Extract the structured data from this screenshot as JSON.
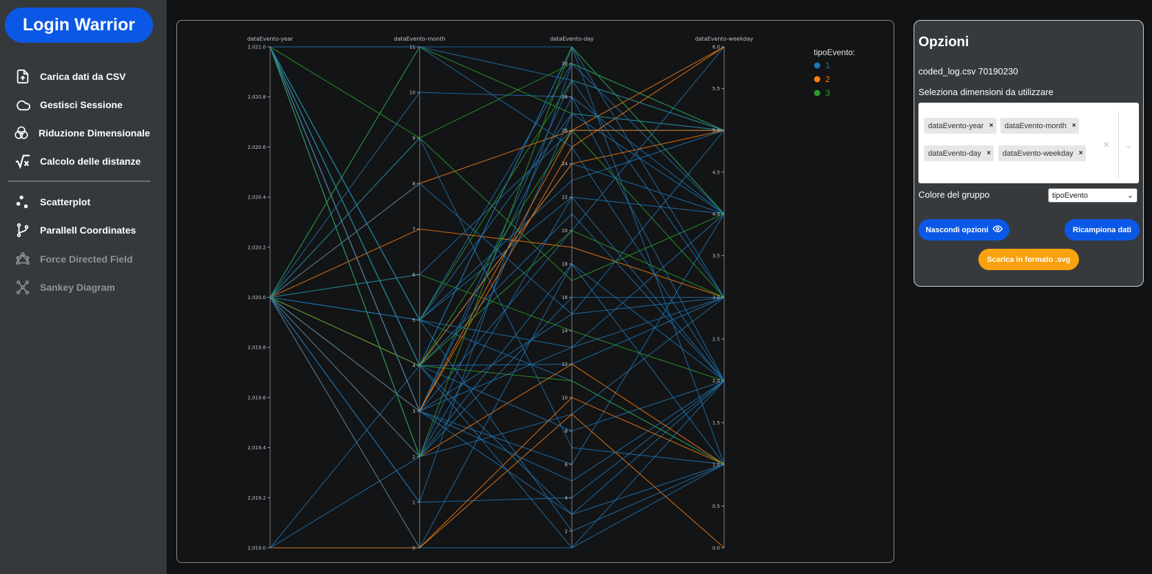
{
  "app": {
    "title": "Login Warrior"
  },
  "sidebar": {
    "items": [
      {
        "label": "Carica dati da CSV",
        "icon": "file-upload-icon",
        "enabled": true
      },
      {
        "label": "Gestisci Sessione",
        "icon": "cloud-icon",
        "enabled": true
      },
      {
        "label": "Riduzione Dimensionale",
        "icon": "venn-icon",
        "enabled": true
      },
      {
        "label": "Calcolo delle distanze",
        "icon": "square-root-icon",
        "enabled": true
      },
      {
        "label": "Scatterplot",
        "icon": "scatter-icon",
        "enabled": true
      },
      {
        "label": "Parallell Coordinates",
        "icon": "branch-icon",
        "enabled": true
      },
      {
        "label": "Force Directed Field",
        "icon": "graph-icon",
        "enabled": false
      },
      {
        "label": "Sankey Diagram",
        "icon": "sankey-icon",
        "enabled": false
      }
    ]
  },
  "options": {
    "title": "Opzioni",
    "file_info": "coded_log.csv 70190230",
    "select_label": "Seleziona dimensioni da utilizzare",
    "selected_dimensions": [
      "dataEvento-year",
      "dataEvento-month",
      "dataEvento-day",
      "dataEvento-weekday"
    ],
    "chip_remove": "×",
    "clear_symbol": "×",
    "dropdown_symbol": "⌄",
    "color_label": "Colore del gruppo",
    "color_value": "tipoEvento",
    "color_arrow": "⌄",
    "hide_button": "Nascondi opzioni",
    "resample_button": "Ricampiona dati",
    "download_button": "Scarica in formato .svg",
    "colors": {
      "accent": "#0b58e6",
      "download": "#f9a10e"
    }
  },
  "chart_data": {
    "type": "parallel-coordinates",
    "axes": [
      {
        "name": "dataEvento-year",
        "min": 2019.0,
        "max": 2021.0,
        "ticks": [
          "2,019.0",
          "2,019.2",
          "2,019.4",
          "2,019.6",
          "2,019.8",
          "2,020.0",
          "2,020.2",
          "2,020.4",
          "2,020.6",
          "2,020.8",
          "2,021.0"
        ]
      },
      {
        "name": "dataEvento-month",
        "min": 0,
        "max": 11,
        "ticks": [
          "0",
          "1",
          "2",
          "3",
          "4",
          "5",
          "6",
          "7",
          "8",
          "9",
          "10",
          "11"
        ]
      },
      {
        "name": "dataEvento-day",
        "min": 1,
        "max": 31,
        "ticks": [
          "2",
          "4",
          "6",
          "8",
          "10",
          "12",
          "14",
          "16",
          "18",
          "20",
          "22",
          "24",
          "26",
          "28",
          "30"
        ]
      },
      {
        "name": "dataEvento-weekday",
        "min": 0,
        "max": 6,
        "ticks": [
          "0.0",
          "0.5",
          "1.0",
          "1.5",
          "2.0",
          "2.5",
          "3.0",
          "3.5",
          "4.0",
          "4.5",
          "5.0",
          "5.5",
          "6.0"
        ]
      }
    ],
    "legend": {
      "title": "tipoEvento:",
      "position": "top-right",
      "entries": [
        {
          "label": "1",
          "color": "#1f77b4"
        },
        {
          "label": "2",
          "color": "#ff7f0e"
        },
        {
          "label": "3",
          "color": "#2ca02c"
        }
      ]
    },
    "lines": [
      {
        "g": 1,
        "v": [
          2021,
          4,
          24,
          4
        ]
      },
      {
        "g": 1,
        "v": [
          2021,
          3,
          28,
          2
        ]
      },
      {
        "g": 1,
        "v": [
          2021,
          5,
          30,
          5
        ]
      },
      {
        "g": 1,
        "v": [
          2021,
          2,
          18,
          1
        ]
      },
      {
        "g": 1,
        "v": [
          2021,
          4,
          12,
          3
        ]
      },
      {
        "g": 1,
        "v": [
          2021,
          3,
          6,
          4
        ]
      },
      {
        "g": 1,
        "v": [
          2021,
          5,
          22,
          2
        ]
      },
      {
        "g": 1,
        "v": [
          2021,
          4,
          31,
          1
        ]
      },
      {
        "g": 1,
        "v": [
          2021,
          3,
          15,
          5
        ]
      },
      {
        "g": 1,
        "v": [
          2021,
          2,
          9,
          3
        ]
      },
      {
        "g": 1,
        "v": [
          2021,
          5,
          27,
          4
        ]
      },
      {
        "g": 1,
        "v": [
          2021,
          4,
          3,
          2
        ]
      },
      {
        "g": 1,
        "v": [
          2021,
          3,
          20,
          6
        ]
      },
      {
        "g": 1,
        "v": [
          2021,
          5,
          11,
          1
        ]
      },
      {
        "g": 3,
        "v": [
          2021,
          4,
          26,
          3
        ]
      },
      {
        "g": 3,
        "v": [
          2021,
          5,
          29,
          5
        ]
      },
      {
        "g": 3,
        "v": [
          2021,
          9,
          17,
          4
        ]
      },
      {
        "g": 1,
        "v": [
          2021,
          11,
          25,
          2
        ]
      },
      {
        "g": 1,
        "v": [
          2021,
          4,
          1,
          1
        ]
      },
      {
        "g": 1,
        "v": [
          2021,
          3,
          13,
          4
        ]
      },
      {
        "g": 1,
        "v": [
          2020,
          5,
          23,
          5
        ]
      },
      {
        "g": 1,
        "v": [
          2020,
          10,
          28,
          4
        ]
      },
      {
        "g": 1,
        "v": [
          2020,
          11,
          31,
          4
        ]
      },
      {
        "g": 2,
        "v": [
          2020,
          7,
          19,
          3
        ]
      },
      {
        "g": 2,
        "v": [
          2020,
          8,
          26,
          6
        ]
      },
      {
        "g": 3,
        "v": [
          2020,
          6,
          14,
          2
        ]
      },
      {
        "g": 3,
        "v": [
          2020,
          9,
          30,
          5
        ]
      },
      {
        "g": 2,
        "v": [
          2020,
          2,
          12,
          1
        ]
      },
      {
        "g": 2,
        "v": [
          2020,
          0,
          9,
          0
        ]
      },
      {
        "g": 1,
        "v": [
          2020,
          1,
          4,
          2
        ]
      },
      {
        "g": 1,
        "v": [
          2020,
          3,
          29,
          3
        ]
      },
      {
        "g": 1,
        "v": [
          2020,
          4,
          21,
          2
        ]
      },
      {
        "g": 3,
        "v": [
          2020,
          11,
          27,
          5
        ]
      },
      {
        "g": 1,
        "v": [
          2020,
          5,
          2,
          1
        ]
      },
      {
        "g": 1,
        "v": [
          2020,
          2,
          16,
          3
        ]
      },
      {
        "g": 2,
        "v": [
          2020,
          4,
          24,
          5
        ]
      },
      {
        "g": 1,
        "v": [
          2020,
          9,
          7,
          1
        ]
      },
      {
        "g": 1,
        "v": [
          2020,
          1,
          30,
          4
        ]
      },
      {
        "g": 2,
        "v": [
          2020,
          3,
          25,
          6
        ]
      },
      {
        "g": 1,
        "v": [
          2020,
          0,
          18,
          2
        ]
      },
      {
        "g": 1,
        "v": [
          2019,
          0,
          1,
          2
        ]
      },
      {
        "g": 1,
        "v": [
          2019,
          2,
          22,
          4
        ]
      },
      {
        "g": 2,
        "v": [
          2019,
          0,
          10,
          1
        ]
      },
      {
        "g": 1,
        "v": [
          2019,
          4,
          31,
          3
        ]
      },
      {
        "g": 1,
        "v": [
          2020,
          6,
          26,
          5
        ]
      },
      {
        "g": 3,
        "v": [
          2020,
          4,
          11,
          1
        ]
      },
      {
        "g": 1,
        "v": [
          2020,
          8,
          15,
          3
        ]
      },
      {
        "g": 1,
        "v": [
          2020,
          3,
          5,
          2
        ]
      },
      {
        "g": 3,
        "v": [
          2021,
          4,
          20,
          3
        ]
      },
      {
        "g": 1,
        "v": [
          2021,
          2,
          27,
          5
        ]
      },
      {
        "g": 2,
        "v": [
          2021,
          3,
          26,
          5
        ]
      },
      {
        "g": 1,
        "v": [
          2021,
          11,
          29,
          5
        ]
      },
      {
        "g": 1,
        "v": [
          2021,
          4,
          8,
          2
        ]
      },
      {
        "g": 3,
        "v": [
          2021,
          2,
          31,
          4
        ]
      },
      {
        "g": 1,
        "v": [
          2021,
          5,
          13,
          3
        ]
      },
      {
        "g": 1,
        "v": [
          2021,
          3,
          3,
          1
        ]
      }
    ]
  }
}
